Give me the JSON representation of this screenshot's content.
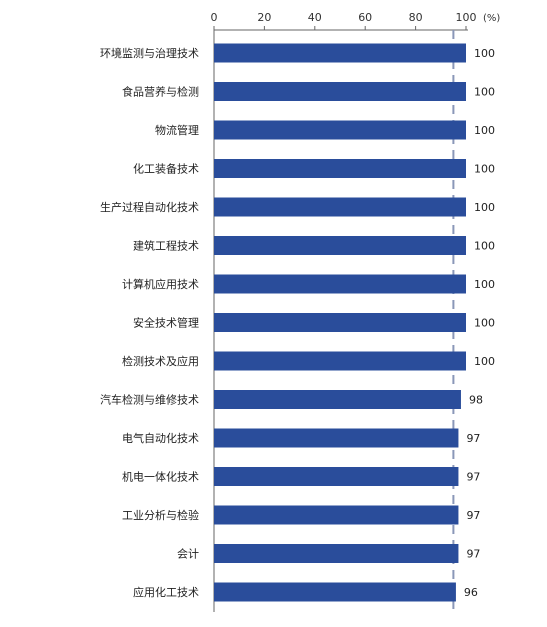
{
  "chart_data": {
    "type": "bar",
    "orientation": "horizontal",
    "categories": [
      "环境监测与治理技术",
      "食品营养与检测",
      "物流管理",
      "化工装备技术",
      "生产过程自动化技术",
      "建筑工程技术",
      "计算机应用技术",
      "安全技术管理",
      "检测技术及应用",
      "汽车检测与维修技术",
      "电气自动化技术",
      "机电一体化技术",
      "工业分析与检验",
      "会计",
      "应用化工技术"
    ],
    "values": [
      100,
      100,
      100,
      100,
      100,
      100,
      100,
      100,
      100,
      98,
      97,
      97,
      97,
      97,
      96
    ],
    "value_labels": [
      "100",
      "100",
      "100",
      "100",
      "100",
      "100",
      "100",
      "100",
      "100",
      "98",
      "97",
      "97",
      "97",
      "97",
      "96"
    ],
    "x_ticks": [
      "0",
      "20",
      "40",
      "60",
      "80",
      "100"
    ],
    "x_unit": "(%)",
    "xlim": [
      0,
      100
    ],
    "reference_line": 95,
    "axis_position": "top",
    "grid": false,
    "legend": "none",
    "colors": {
      "bar": "#2a4d9b",
      "reference_line": "#8a97b8",
      "axis": "#666666"
    }
  }
}
